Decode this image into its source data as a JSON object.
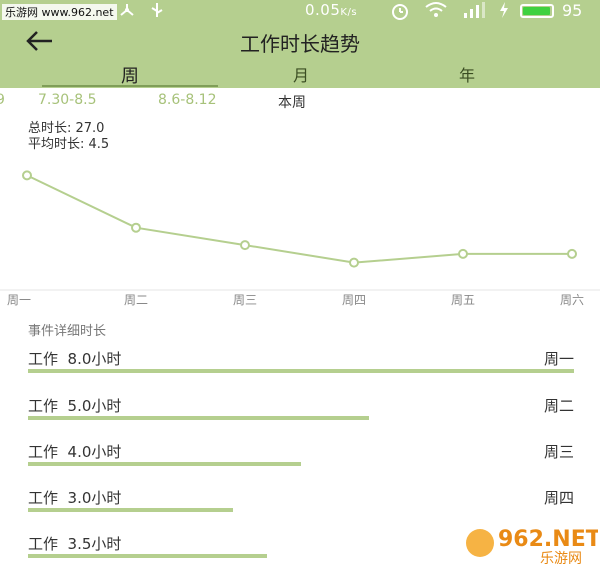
{
  "status_bar": {
    "watermark": "乐游网 www.962.net",
    "speed": "0.05",
    "speed_unit": "K/s",
    "battery_percent": "95",
    "battery_level": 0.95
  },
  "header": {
    "title": "工作时长趋势"
  },
  "tabs": [
    {
      "label": "周"
    },
    {
      "label": "月"
    },
    {
      "label": "年"
    }
  ],
  "weeks": [
    {
      "label": "9"
    },
    {
      "label": "7.30-8.5"
    },
    {
      "label": "8.6-8.12"
    },
    {
      "label": "本周"
    }
  ],
  "summary": {
    "total_label": "总时长: 27.0",
    "avg_label": "平均时长: 4.5"
  },
  "chart_data": {
    "type": "line",
    "categories": [
      "周一",
      "周二",
      "周三",
      "周四",
      "周五",
      "周六"
    ],
    "values": [
      8.0,
      5.0,
      4.0,
      3.0,
      3.5,
      3.5
    ],
    "title": "",
    "xlabel": "",
    "ylabel": "",
    "ylim": [
      2.0,
      9.0
    ],
    "color": "#b5cf8f",
    "grid": false
  },
  "details": {
    "section_label": "事件详细时长",
    "max_hours": 8.0,
    "rows": [
      {
        "label": "工作  8.0小时",
        "day": "周一",
        "hours": 8.0
      },
      {
        "label": "工作  5.0小时",
        "day": "周二",
        "hours": 5.0
      },
      {
        "label": "工作  4.0小时",
        "day": "周三",
        "hours": 4.0
      },
      {
        "label": "工作  3.0小时",
        "day": "周四",
        "hours": 3.0
      },
      {
        "label": "工作  3.5小时",
        "day": "",
        "hours": 3.5
      }
    ]
  },
  "watermark_logo": {
    "text_main": "962.NET",
    "text_sub": "乐游网"
  }
}
